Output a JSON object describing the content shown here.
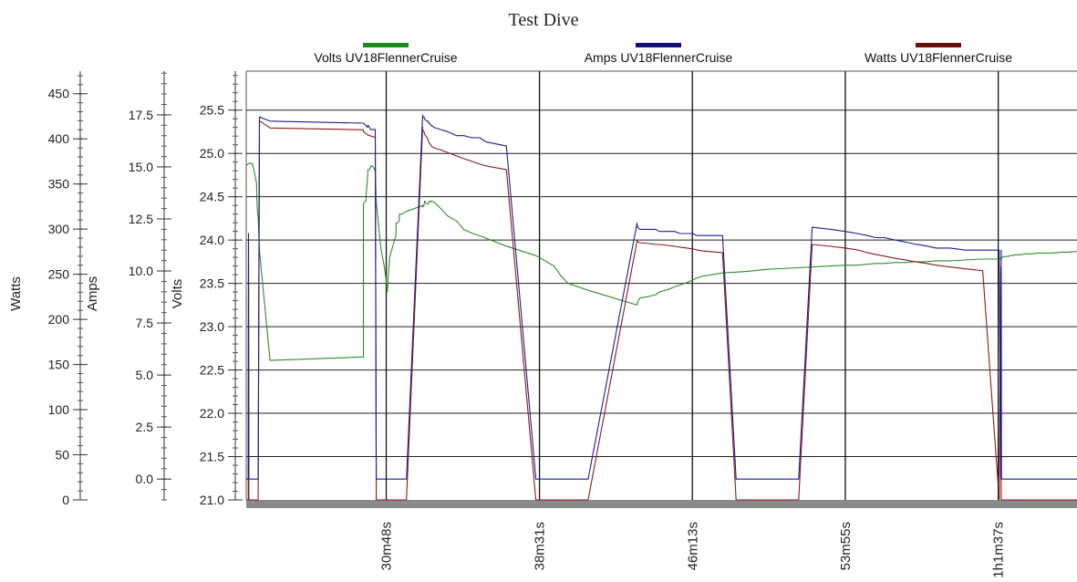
{
  "chart_data": {
    "type": "line",
    "title": "Test Dive",
    "x": {
      "tick_labels": [
        "30m48s",
        "38m31s",
        "46m13s",
        "53m55s",
        "1h1m37s"
      ],
      "tick_seconds": [
        1848,
        2311,
        2773,
        3235,
        3697
      ],
      "range_seconds": [
        1425,
        3935
      ]
    },
    "axes": [
      {
        "id": "watts",
        "label": "Watts",
        "range": [
          0,
          475
        ],
        "ticks": [
          0,
          50,
          100,
          150,
          200,
          250,
          300,
          350,
          400,
          450
        ],
        "tick_labels": [
          "0",
          "50",
          "100",
          "150",
          "200",
          "250",
          "300",
          "350",
          "400",
          "450"
        ]
      },
      {
        "id": "amps",
        "label": "Amps",
        "range": [
          -1.0,
          19.6
        ],
        "ticks": [
          0.0,
          2.5,
          5.0,
          7.5,
          10.0,
          12.5,
          15.0,
          17.5
        ],
        "tick_labels": [
          "0.0",
          "2.5",
          "5.0",
          "7.5",
          "10.0",
          "12.5",
          "15.0",
          "17.5"
        ]
      },
      {
        "id": "volts",
        "label": "Volts",
        "range": [
          21.0,
          25.95
        ],
        "ticks": [
          21.0,
          21.5,
          22.0,
          22.5,
          23.0,
          23.5,
          24.0,
          24.5,
          25.0,
          25.5
        ],
        "tick_labels": [
          "21.0",
          "21.5",
          "22.0",
          "22.5",
          "23.0",
          "23.5",
          "24.0",
          "24.5",
          "25.0",
          "25.5"
        ]
      }
    ],
    "grid": true,
    "legend_position": "top",
    "series": [
      {
        "name": "Volts UV18FlennerCruise",
        "axis": "volts",
        "color": "#2e8b2e",
        "legend_color": "#1a8a1a",
        "x": [
          1425,
          1431,
          1432,
          1433,
          1437,
          1441,
          1444,
          1446,
          1451,
          1456,
          1457,
          1458,
          1461,
          1465,
          1497,
          1779,
          1779,
          1786,
          1791,
          1793,
          1797,
          1801,
          1803,
          1810,
          1815,
          1818,
          1831,
          1833,
          1842,
          1849,
          1851,
          1858,
          1877,
          1878,
          1883,
          1887,
          1888,
          1895,
          1909,
          1958,
          1958,
          1962,
          1964,
          1970,
          1975,
          1976,
          1979,
          1983,
          1984,
          1992,
          2011,
          2033,
          2061,
          2083,
          2107,
          2130,
          2150,
          2211,
          2300,
          2355,
          2373,
          2397,
          2458,
          2606,
          2607,
          2614,
          2642,
          2662,
          2673,
          2699,
          2720,
          2735,
          2757,
          2775,
          2785,
          2801,
          2832,
          2864,
          2905,
          2944,
          2991,
          3035,
          3094,
          3135,
          3191,
          3235,
          3271,
          3301,
          3327,
          3354,
          3381,
          3414,
          3443,
          3481,
          3509,
          3552,
          3598,
          3650,
          3700,
          3705,
          3706,
          3707,
          3711,
          3713,
          3721,
          3728,
          3733,
          3740,
          3748,
          3756,
          3763,
          3778,
          3799,
          3818,
          3843,
          3862,
          3887,
          3910,
          3935
        ],
        "values": [
          24.86,
          24.88,
          24.88,
          24.88,
          24.89,
          24.88,
          24.88,
          24.84,
          24.76,
          24.66,
          24.5,
          24.38,
          24.25,
          23.88,
          22.61,
          22.65,
          24.42,
          24.45,
          24.7,
          24.81,
          24.82,
          24.84,
          24.86,
          24.84,
          24.79,
          24.44,
          23.93,
          23.88,
          23.7,
          23.5,
          23.4,
          23.8,
          24.05,
          24.2,
          24.2,
          24.22,
          24.3,
          24.3,
          24.33,
          24.4,
          24.38,
          24.4,
          24.45,
          24.42,
          24.42,
          24.43,
          24.45,
          24.44,
          24.45,
          24.44,
          24.37,
          24.28,
          24.22,
          24.12,
          24.08,
          24.05,
          24.02,
          23.93,
          23.82,
          23.7,
          23.6,
          23.5,
          23.42,
          23.25,
          23.28,
          23.33,
          23.35,
          23.37,
          23.4,
          23.43,
          23.46,
          23.48,
          23.51,
          23.54,
          23.56,
          23.58,
          23.6,
          23.62,
          23.63,
          23.64,
          23.66,
          23.67,
          23.68,
          23.69,
          23.7,
          23.71,
          23.71,
          23.72,
          23.73,
          23.73,
          23.74,
          23.74,
          23.75,
          23.75,
          23.76,
          23.76,
          23.77,
          23.78,
          23.78,
          23.79,
          23.79,
          23.8,
          23.8,
          23.81,
          23.81,
          23.81,
          23.82,
          23.82,
          23.83,
          23.83,
          23.83,
          23.84,
          23.84,
          23.85,
          23.85,
          23.85,
          23.86,
          23.86,
          23.87
        ]
      },
      {
        "name": "Amps UV18FlennerCruise",
        "axis": "amps",
        "color": "#1e1e8a",
        "legend_color": "#101078",
        "x": [
          1425,
          1431,
          1432,
          1433,
          1437,
          1441,
          1444,
          1446,
          1451,
          1456,
          1457,
          1458,
          1461,
          1465,
          1497,
          1779,
          1779,
          1786,
          1791,
          1793,
          1797,
          1801,
          1803,
          1810,
          1815,
          1818,
          1831,
          1833,
          1842,
          1849,
          1851,
          1858,
          1877,
          1878,
          1883,
          1887,
          1888,
          1895,
          1909,
          1958,
          1958,
          1962,
          1964,
          1970,
          1975,
          1976,
          1979,
          1983,
          1984,
          1992,
          2011,
          2033,
          2061,
          2083,
          2107,
          2130,
          2150,
          2211,
          2300,
          2355,
          2373,
          2397,
          2458,
          2606,
          2607,
          2614,
          2642,
          2662,
          2673,
          2699,
          2720,
          2735,
          2757,
          2775,
          2785,
          2801,
          2832,
          2864,
          2905,
          2944,
          2991,
          3035,
          3094,
          3135,
          3191,
          3235,
          3271,
          3301,
          3327,
          3354,
          3381,
          3414,
          3443,
          3481,
          3509,
          3552,
          3598,
          3650,
          3700,
          3705,
          3706,
          3707,
          3711,
          3713,
          3721,
          3728,
          3733,
          3740,
          3748,
          3756,
          3763,
          3778,
          3799,
          3818,
          3843,
          3862,
          3887,
          3910,
          3935
        ],
        "values": [
          0.0,
          0.0,
          11.8,
          0.0,
          0.0,
          0.0,
          0.0,
          0.0,
          0.0,
          0.0,
          0.0,
          0.0,
          0.0,
          17.4,
          17.2,
          17.1,
          17.1,
          17.0,
          16.9,
          17.0,
          16.9,
          16.8,
          16.8,
          16.8,
          16.8,
          0.0,
          0.0,
          0.0,
          0.0,
          0.0,
          0.0,
          0.0,
          0.0,
          0.0,
          0.0,
          0.0,
          0.0,
          0.0,
          0.0,
          17.5,
          17.4,
          17.4,
          17.3,
          17.2,
          17.2,
          17.1,
          17.1,
          17.0,
          17.0,
          16.9,
          16.8,
          16.7,
          16.5,
          16.5,
          16.4,
          16.4,
          16.2,
          16.0,
          0.0,
          0.0,
          0.0,
          0.0,
          0.0,
          12.3,
          12.1,
          12.0,
          12.0,
          12.0,
          11.9,
          11.9,
          11.9,
          11.8,
          11.8,
          11.8,
          11.7,
          11.7,
          11.7,
          11.7,
          0.0,
          0.0,
          0.0,
          0.0,
          0.0,
          12.1,
          12.0,
          11.9,
          11.8,
          11.7,
          11.6,
          11.6,
          11.5,
          11.4,
          11.3,
          11.2,
          11.1,
          11.1,
          11.0,
          11.0,
          11.0,
          0.0,
          11.0,
          0.0,
          0.0,
          0.0,
          0.0,
          0.0,
          0.0,
          0.0,
          0.0,
          0.0,
          0.0,
          0.0,
          0.0,
          0.0,
          0.0,
          0.0,
          0.0,
          0.0,
          0.0
        ]
      },
      {
        "name": "Watts UV18FlennerCruise",
        "axis": "watts",
        "color": "#8b1a1a",
        "legend_color": "#6b0e0e",
        "x": [
          1425,
          1431,
          1432,
          1433,
          1437,
          1441,
          1444,
          1446,
          1451,
          1456,
          1457,
          1458,
          1461,
          1465,
          1497,
          1779,
          1779,
          1786,
          1791,
          1793,
          1797,
          1801,
          1803,
          1810,
          1815,
          1818,
          1831,
          1833,
          1842,
          1849,
          1851,
          1858,
          1877,
          1878,
          1883,
          1887,
          1888,
          1895,
          1909,
          1958,
          1958,
          1962,
          1964,
          1970,
          1975,
          1976,
          1979,
          1983,
          1984,
          1992,
          2011,
          2033,
          2061,
          2083,
          2107,
          2130,
          2150,
          2211,
          2300,
          2355,
          2373,
          2397,
          2458,
          2606,
          2607,
          2614,
          2642,
          2662,
          2673,
          2699,
          2720,
          2735,
          2757,
          2775,
          2785,
          2801,
          2832,
          2864,
          2905,
          2944,
          2991,
          3035,
          3094,
          3135,
          3191,
          3235,
          3271,
          3301,
          3327,
          3354,
          3381,
          3414,
          3443,
          3481,
          3509,
          3552,
          3598,
          3650,
          3700,
          3705,
          3706,
          3707,
          3711,
          3713,
          3721,
          3728,
          3733,
          3740,
          3748,
          3756,
          3763,
          3778,
          3799,
          3818,
          3843,
          3862,
          3887,
          3910,
          3935
        ],
        "values": [
          0,
          0,
          290,
          0,
          0,
          0,
          0,
          0,
          0,
          0,
          0,
          0,
          0,
          420,
          412,
          410,
          408,
          406,
          405,
          404,
          404,
          403,
          403,
          402,
          402,
          0,
          0,
          0,
          0,
          0,
          0,
          0,
          0,
          0,
          0,
          0,
          0,
          0,
          0,
          413,
          410,
          408,
          405,
          402,
          399,
          397,
          395,
          393,
          392,
          390,
          388,
          385,
          381,
          378,
          375,
          372,
          370,
          366,
          0,
          0,
          0,
          0,
          0,
          287,
          286,
          285,
          284,
          283,
          283,
          282,
          281,
          280,
          279,
          278,
          277,
          276,
          275,
          274,
          0,
          0,
          0,
          0,
          0,
          283,
          281,
          279,
          277,
          274,
          272,
          270,
          268,
          266,
          264,
          262,
          260,
          258,
          256,
          254,
          0,
          258,
          0,
          0,
          0,
          0,
          0,
          0,
          0,
          0,
          0,
          0,
          0,
          0,
          0,
          0,
          0,
          0,
          0,
          0,
          0
        ]
      }
    ]
  }
}
